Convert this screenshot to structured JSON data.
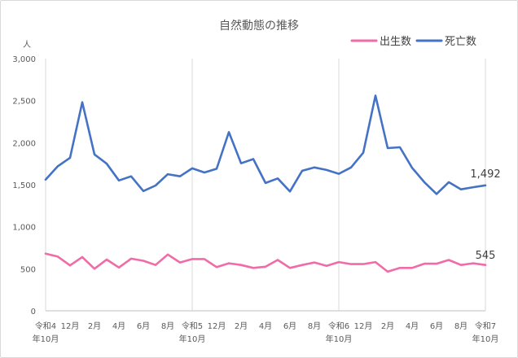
{
  "chart_data": {
    "type": "line",
    "title": "自然動態の推移",
    "ylabel": "人",
    "ylim": [
      0,
      3000
    ],
    "yticks": [
      0,
      500,
      1000,
      1500,
      2000,
      2500,
      3000
    ],
    "ytick_labels": [
      "0",
      "500",
      "1,000",
      "1,500",
      "2,000",
      "2,500",
      "3,000"
    ],
    "grid": "vertical lines at each 年 boundary",
    "legend_position": "top-right",
    "x_tick_labels": [
      {
        "line1": "令和4",
        "line2": "年10月"
      },
      {
        "line1": "12月",
        "line2": ""
      },
      {
        "line1": "2月",
        "line2": ""
      },
      {
        "line1": "4月",
        "line2": ""
      },
      {
        "line1": "6月",
        "line2": ""
      },
      {
        "line1": "8月",
        "line2": ""
      },
      {
        "line1": "令和5",
        "line2": "年10月"
      },
      {
        "line1": "12月",
        "line2": ""
      },
      {
        "line1": "2月",
        "line2": ""
      },
      {
        "line1": "4月",
        "line2": ""
      },
      {
        "line1": "6月",
        "line2": ""
      },
      {
        "line1": "8月",
        "line2": ""
      },
      {
        "line1": "令和6",
        "line2": "年10月"
      },
      {
        "line1": "12月",
        "line2": ""
      },
      {
        "line1": "2月",
        "line2": ""
      },
      {
        "line1": "4月",
        "line2": ""
      },
      {
        "line1": "6月",
        "line2": ""
      },
      {
        "line1": "8月",
        "line2": ""
      },
      {
        "line1": "令和7",
        "line2": "年10月"
      }
    ],
    "series": [
      {
        "name": "出生数",
        "color": "#f06ba8",
        "end_label": "545",
        "values": [
          680,
          645,
          540,
          640,
          500,
          610,
          515,
          620,
          595,
          545,
          670,
          575,
          615,
          615,
          520,
          565,
          545,
          510,
          525,
          605,
          510,
          545,
          575,
          535,
          580,
          555,
          555,
          580,
          465,
          510,
          510,
          560,
          560,
          605,
          545,
          565,
          545
        ]
      },
      {
        "name": "死亡数",
        "color": "#4472c4",
        "end_label": "1,492",
        "values": [
          1560,
          1720,
          1820,
          2480,
          1860,
          1750,
          1550,
          1600,
          1425,
          1490,
          1625,
          1600,
          1695,
          1645,
          1690,
          2125,
          1755,
          1805,
          1520,
          1575,
          1420,
          1665,
          1705,
          1675,
          1630,
          1705,
          1880,
          2560,
          1935,
          1945,
          1700,
          1530,
          1390,
          1530,
          1445,
          1470,
          1492
        ]
      }
    ]
  }
}
